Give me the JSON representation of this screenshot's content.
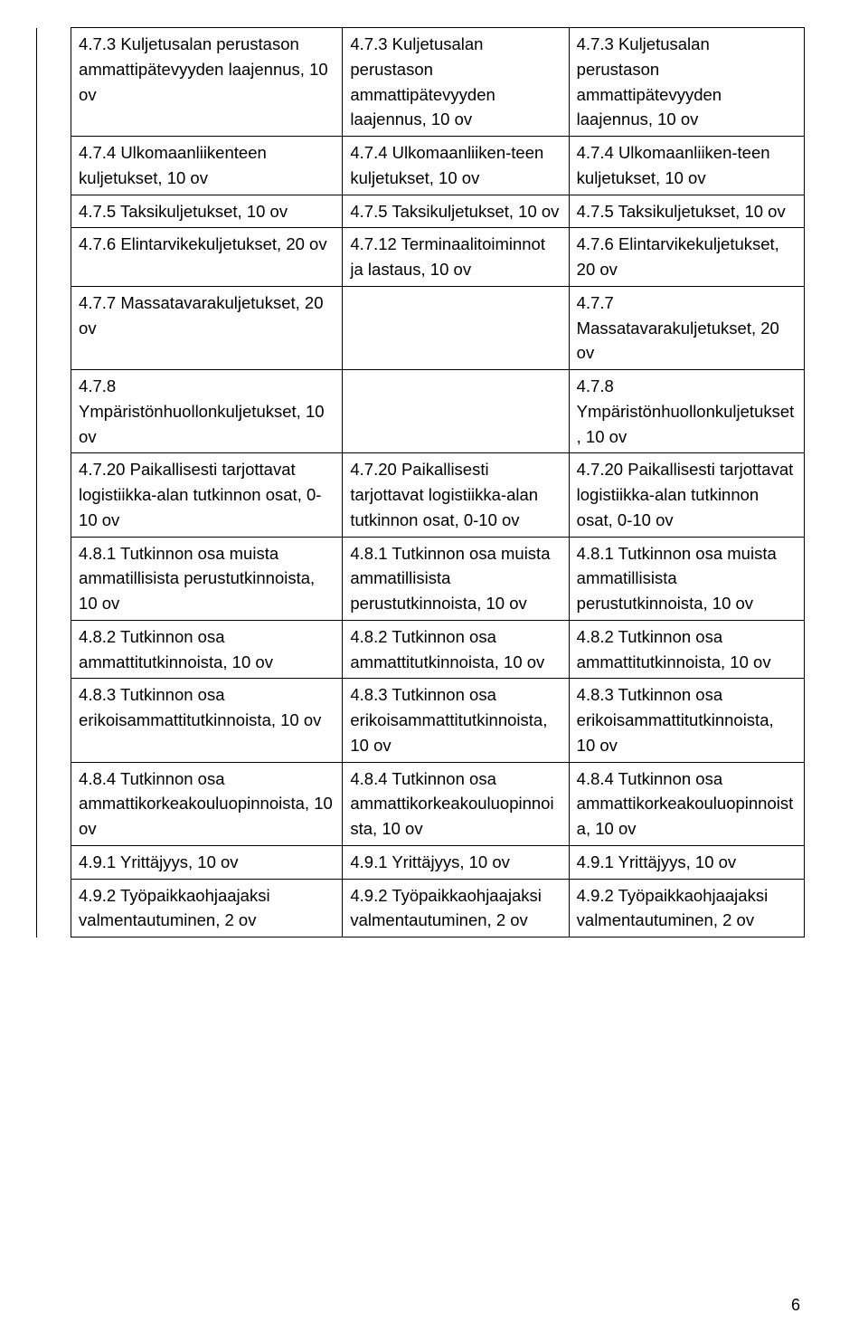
{
  "page_number": "6",
  "table": {
    "rows": [
      {
        "c1": "4.7.3 Kuljetusalan perustason ammattipätevyyden laajennus, 10 ov",
        "c2": "4.7.3 Kuljetusalan perustason ammattipätevyyden laajennus, 10 ov",
        "c3": "4.7.3 Kuljetusalan perustason ammattipätevyyden laajennus, 10 ov"
      },
      {
        "c1": "4.7.4 Ulkomaanliikenteen kuljetukset, 10 ov",
        "c2": "4.7.4 Ulkomaanliiken-teen kuljetukset, 10 ov",
        "c3": "4.7.4 Ulkomaanliiken-teen kuljetukset, 10 ov"
      },
      {
        "c1": "4.7.5 Taksikuljetukset, 10 ov",
        "c2": "4.7.5 Taksikuljetukset, 10 ov",
        "c3": "4.7.5 Taksikuljetukset, 10 ov"
      },
      {
        "c1": "4.7.6 Elintarvikekuljetukset, 20 ov",
        "c2": "4.7.12 Terminaalitoiminnot ja lastaus, 10 ov",
        "c3": "4.7.6 Elintarvikekuljetukset, 20 ov"
      },
      {
        "c1": "4.7.7 Massatavarakuljetukset, 20 ov",
        "c2": "",
        "c3": "4.7.7 Massatavarakuljetukset, 20 ov"
      },
      {
        "c1": "4.7.8 Ympäristönhuollonkuljetukset, 10 ov",
        "c2": "",
        "c3": "4.7.8 Ympäristönhuollonkuljetukset, 10 ov"
      },
      {
        "c1": "4.7.20 Paikallisesti tarjottavat logistiikka-alan tutkinnon osat, 0-10 ov",
        "c2": "4.7.20 Paikallisesti tarjottavat logistiikka-alan tutkinnon osat, 0-10 ov",
        "c3": "4.7.20 Paikallisesti tarjottavat logistiikka-alan tutkinnon osat, 0-10 ov"
      },
      {
        "c1": "4.8.1 Tutkinnon osa muista ammatillisista perustutkinnoista, 10 ov",
        "c2": "4.8.1 Tutkinnon osa muista ammatillisista perustutkinnoista, 10 ov",
        "c3": "4.8.1 Tutkinnon osa muista ammatillisista perustutkinnoista, 10 ov"
      },
      {
        "c1": "4.8.2 Tutkinnon osa ammattitutkinnoista, 10 ov",
        "c2": "4.8.2 Tutkinnon osa ammattitutkinnoista, 10 ov",
        "c3": "4.8.2 Tutkinnon osa ammattitutkinnoista, 10 ov"
      },
      {
        "c1": "4.8.3 Tutkinnon osa erikoisammattitutkinnoista, 10 ov",
        "c2": "4.8.3 Tutkinnon osa erikoisammattitutkinnoista, 10 ov",
        "c3": "4.8.3 Tutkinnon osa erikoisammattitutkinnoista, 10 ov"
      },
      {
        "c1": "4.8.4 Tutkinnon osa ammattikorkeakouluopinnoista, 10 ov",
        "c2": "4.8.4 Tutkinnon osa ammattikorkeakouluopinnoista, 10 ov",
        "c3": "4.8.4 Tutkinnon osa ammattikorkeakouluopinnoista, 10 ov"
      },
      {
        "c1": "4.9.1 Yrittäjyys, 10 ov",
        "c2": "4.9.1 Yrittäjyys, 10 ov",
        "c3": "4.9.1 Yrittäjyys, 10 ov"
      },
      {
        "c1": "4.9.2 Työpaikkaohjaajaksi valmentautuminen, 2 ov",
        "c2": "4.9.2 Työpaikkaohjaajaksi valmentautuminen, 2 ov",
        "c3": "4.9.2 Työpaikkaohjaajaksi valmentautuminen, 2 ov"
      }
    ]
  }
}
